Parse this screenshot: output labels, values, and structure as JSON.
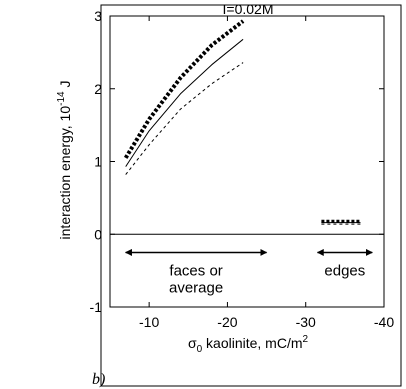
{
  "panel_label": "b)",
  "chart_data": {
    "type": "line",
    "title": "I=0.02M",
    "xlabel": {
      "prefix": "σ",
      "sub": "0",
      "rest": " kaolinite, mC/m",
      "sup": "2"
    },
    "ylabel": {
      "text": "interaction energy, 10",
      "sup": "-14",
      "unit": " J"
    },
    "xlim": [
      -5,
      -40
    ],
    "ylim": [
      -1,
      3
    ],
    "x_ticks": [
      -10,
      -20,
      -30,
      -40
    ],
    "y_ticks": [
      -1,
      0,
      1,
      2,
      3
    ],
    "grid": false,
    "series": [
      {
        "style": "thick-dotted",
        "x": [
          -7,
          -10,
          -14,
          -18,
          -22
        ],
        "y": [
          1.05,
          1.58,
          2.15,
          2.6,
          2.93
        ]
      },
      {
        "style": "solid",
        "x": [
          -7,
          -10,
          -14,
          -18,
          -22
        ],
        "y": [
          0.93,
          1.42,
          1.93,
          2.33,
          2.68
        ]
      },
      {
        "style": "dashed",
        "x": [
          -7,
          -10,
          -14,
          -18,
          -22
        ],
        "y": [
          0.82,
          1.23,
          1.72,
          2.07,
          2.36
        ]
      },
      {
        "style": "edge-thick-dotted",
        "x": [
          -32,
          -37
        ],
        "y": [
          0.18,
          0.18
        ]
      },
      {
        "style": "edge-solid",
        "x": [
          -32,
          -37
        ],
        "y": [
          0.16,
          0.16
        ]
      },
      {
        "style": "edge-dashed",
        "x": [
          -32,
          -37
        ],
        "y": [
          0.14,
          0.14
        ]
      }
    ],
    "zero_line": 0,
    "annotations": [
      {
        "id": "faces",
        "lines": [
          "faces or",
          "average"
        ],
        "arrow_x": [
          -7,
          -25
        ],
        "arrow_y": -0.25
      },
      {
        "id": "edges",
        "lines": [
          "edges"
        ],
        "arrow_x": [
          -31.5,
          -38.5
        ],
        "arrow_y": -0.25
      }
    ]
  }
}
